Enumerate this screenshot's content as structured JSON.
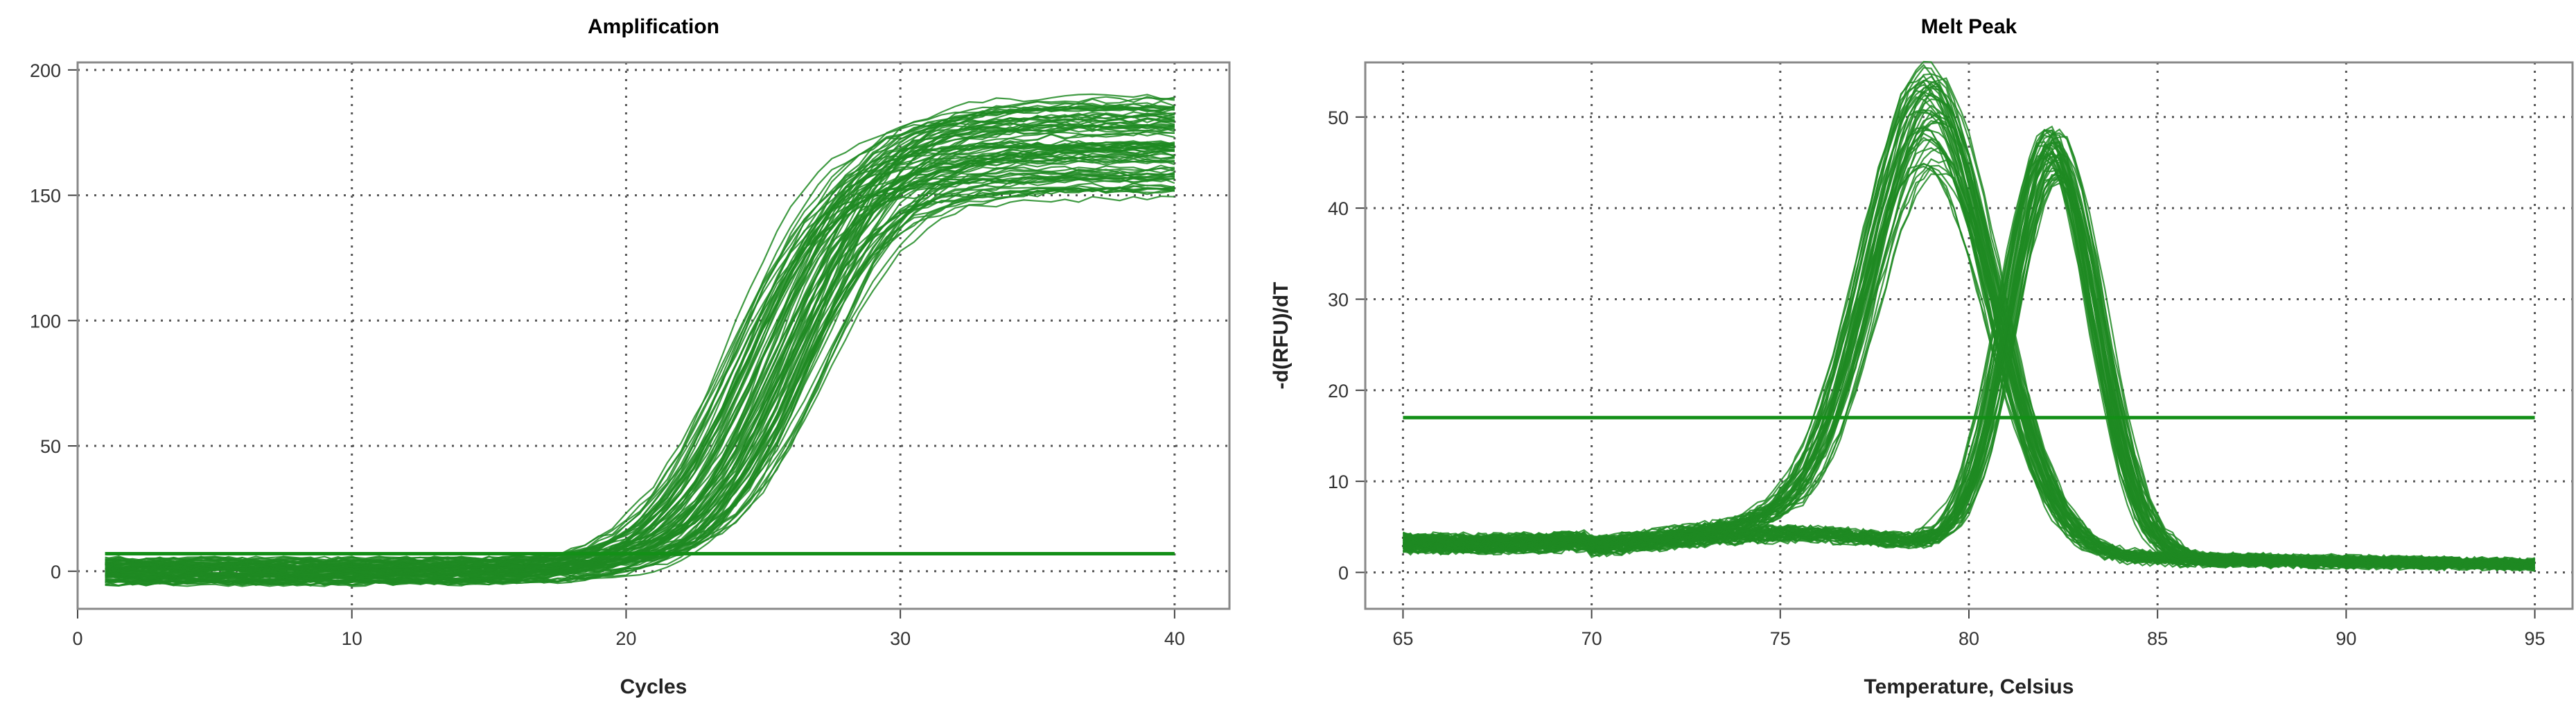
{
  "colors": {
    "curve": "#1e8a22",
    "threshold": "#138f17",
    "grid": "#555555",
    "frame": "#888888"
  },
  "chart_data": [
    {
      "type": "line",
      "title": "Amplification",
      "xlabel": "Cycles",
      "ylabel": "",
      "xlim": [
        0,
        42
      ],
      "ylim": [
        -15,
        203
      ],
      "xticks": [
        0,
        10,
        20,
        30,
        40
      ],
      "yticks": [
        0,
        50,
        100,
        150,
        200
      ],
      "grid": true,
      "legend": "none",
      "threshold": 7,
      "curve_family": {
        "count": 90,
        "x_range": [
          1,
          40
        ],
        "baseline": [
          -5,
          5
        ],
        "plateau": [
          150,
          190
        ],
        "midpoint_cycle": [
          23.5,
          27.5
        ]
      }
    },
    {
      "type": "line",
      "title": "Melt Peak",
      "xlabel": "Temperature, Celsius",
      "ylabel": "-d(RFU)/dT",
      "xlim": [
        64,
        96
      ],
      "ylim": [
        -4,
        56
      ],
      "xticks": [
        65,
        70,
        75,
        80,
        85,
        90,
        95
      ],
      "yticks": [
        0,
        10,
        20,
        30,
        40,
        50
      ],
      "grid": true,
      "legend": "none",
      "threshold": 17,
      "curve_family": {
        "x_range": [
          65,
          95
        ],
        "groups": [
          {
            "peak_temperature": 79.0,
            "peak_height": [
              40,
              52
            ],
            "count": 45
          },
          {
            "peak_temperature": 82.2,
            "peak_height": [
              41,
              47
            ],
            "count": 45
          }
        ]
      }
    }
  ]
}
